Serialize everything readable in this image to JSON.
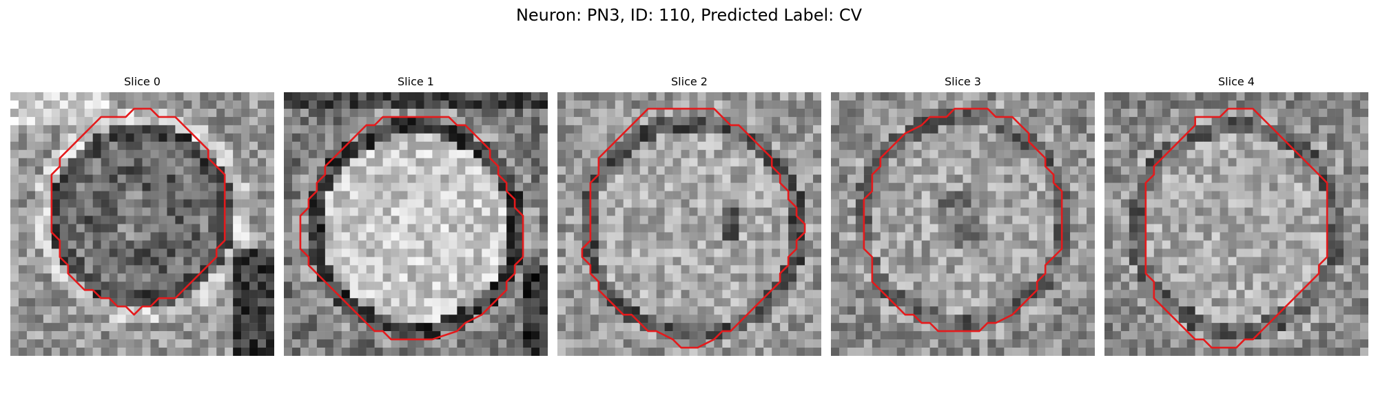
{
  "figure": {
    "title": "Neuron: PN3, ID: 110, Predicted Label: CV",
    "contour_color": "#e41a1c",
    "colormap": "gray",
    "panels": [
      {
        "title": "Slice 0"
      },
      {
        "title": "Slice 1"
      },
      {
        "title": "Slice 2"
      },
      {
        "title": "Slice 3"
      },
      {
        "title": "Slice 4"
      }
    ]
  }
}
